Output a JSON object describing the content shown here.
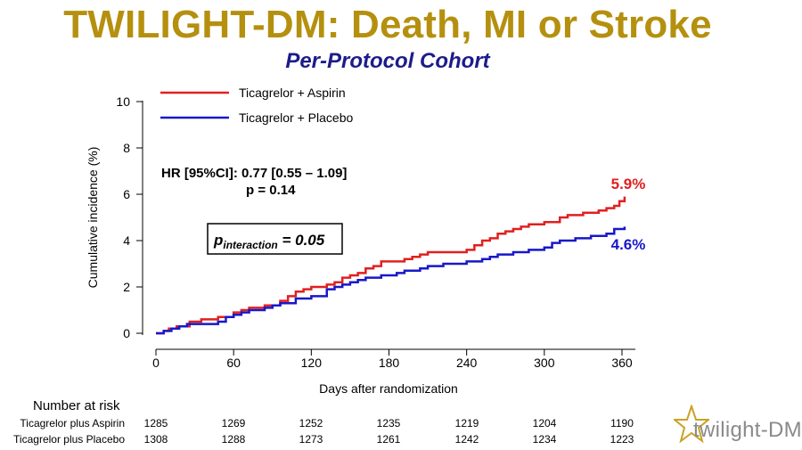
{
  "title": "TWILIGHT-DM: Death, MI or Stroke",
  "subtitle": "Per-Protocol Cohort",
  "chart_data": {
    "type": "line",
    "xlabel": "Days after randomization",
    "ylabel": "Cumulative incidence (%)",
    "xlim": [
      0,
      370
    ],
    "ylim": [
      0,
      10
    ],
    "xticks": [
      0,
      60,
      120,
      180,
      240,
      300,
      360
    ],
    "yticks": [
      0,
      2,
      4,
      6,
      8,
      10
    ],
    "grid": false,
    "legend_position": "top-left",
    "annotations": {
      "hr_line1": "HR [95%CI]: 0.77 [0.55 – 1.09]",
      "hr_line2": "p = 0.14",
      "pinteraction_p": "p",
      "pinteraction_sub": "interaction",
      "pinteraction_value": " = 0.05"
    },
    "series": [
      {
        "name": "Ticagrelor + Aspirin",
        "color": "#e02020",
        "end_label": "5.9%",
        "x": [
          0,
          6,
          10,
          16,
          20,
          26,
          35,
          48,
          60,
          66,
          72,
          84,
          96,
          102,
          108,
          114,
          120,
          132,
          138,
          144,
          150,
          156,
          162,
          168,
          174,
          180,
          192,
          198,
          204,
          210,
          216,
          240,
          246,
          252,
          258,
          264,
          270,
          276,
          282,
          288,
          300,
          312,
          318,
          324,
          330,
          336,
          342,
          348,
          354,
          358,
          362
        ],
        "y": [
          0,
          0.1,
          0.2,
          0.3,
          0.3,
          0.5,
          0.6,
          0.7,
          0.9,
          1.0,
          1.1,
          1.2,
          1.4,
          1.6,
          1.8,
          1.9,
          2.0,
          2.1,
          2.2,
          2.4,
          2.5,
          2.6,
          2.8,
          2.9,
          3.1,
          3.1,
          3.2,
          3.3,
          3.4,
          3.5,
          3.5,
          3.6,
          3.8,
          4.0,
          4.1,
          4.3,
          4.4,
          4.5,
          4.6,
          4.7,
          4.8,
          5.0,
          5.1,
          5.1,
          5.2,
          5.2,
          5.3,
          5.4,
          5.5,
          5.7,
          5.9
        ]
      },
      {
        "name": "Ticagrelor + Placebo",
        "color": "#1818c8",
        "end_label": "4.6%",
        "x": [
          0,
          6,
          12,
          18,
          24,
          36,
          48,
          54,
          60,
          66,
          72,
          84,
          90,
          96,
          108,
          120,
          132,
          138,
          144,
          150,
          156,
          162,
          174,
          186,
          192,
          204,
          210,
          222,
          240,
          252,
          258,
          264,
          276,
          288,
          300,
          306,
          312,
          324,
          336,
          348,
          354,
          362
        ],
        "y": [
          0,
          0.1,
          0.2,
          0.3,
          0.4,
          0.4,
          0.5,
          0.7,
          0.8,
          0.9,
          1.0,
          1.1,
          1.2,
          1.3,
          1.5,
          1.6,
          1.9,
          2.0,
          2.1,
          2.2,
          2.3,
          2.4,
          2.5,
          2.6,
          2.7,
          2.8,
          2.9,
          3.0,
          3.1,
          3.2,
          3.3,
          3.4,
          3.5,
          3.6,
          3.7,
          3.9,
          4.0,
          4.1,
          4.2,
          4.3,
          4.5,
          4.6
        ]
      }
    ]
  },
  "risk_table": {
    "heading": "Number at risk",
    "rows": [
      {
        "label": "Ticagrelor plus Aspirin",
        "values": [
          "1285",
          "1269",
          "1252",
          "1235",
          "1219",
          "1204",
          "1190"
        ]
      },
      {
        "label": "Ticagrelor plus Placebo",
        "values": [
          "1308",
          "1288",
          "1273",
          "1261",
          "1242",
          "1234",
          "1223"
        ]
      }
    ]
  },
  "logo": {
    "text": "twilight-DM",
    "icon": "star-icon",
    "color": "#c9a227"
  }
}
